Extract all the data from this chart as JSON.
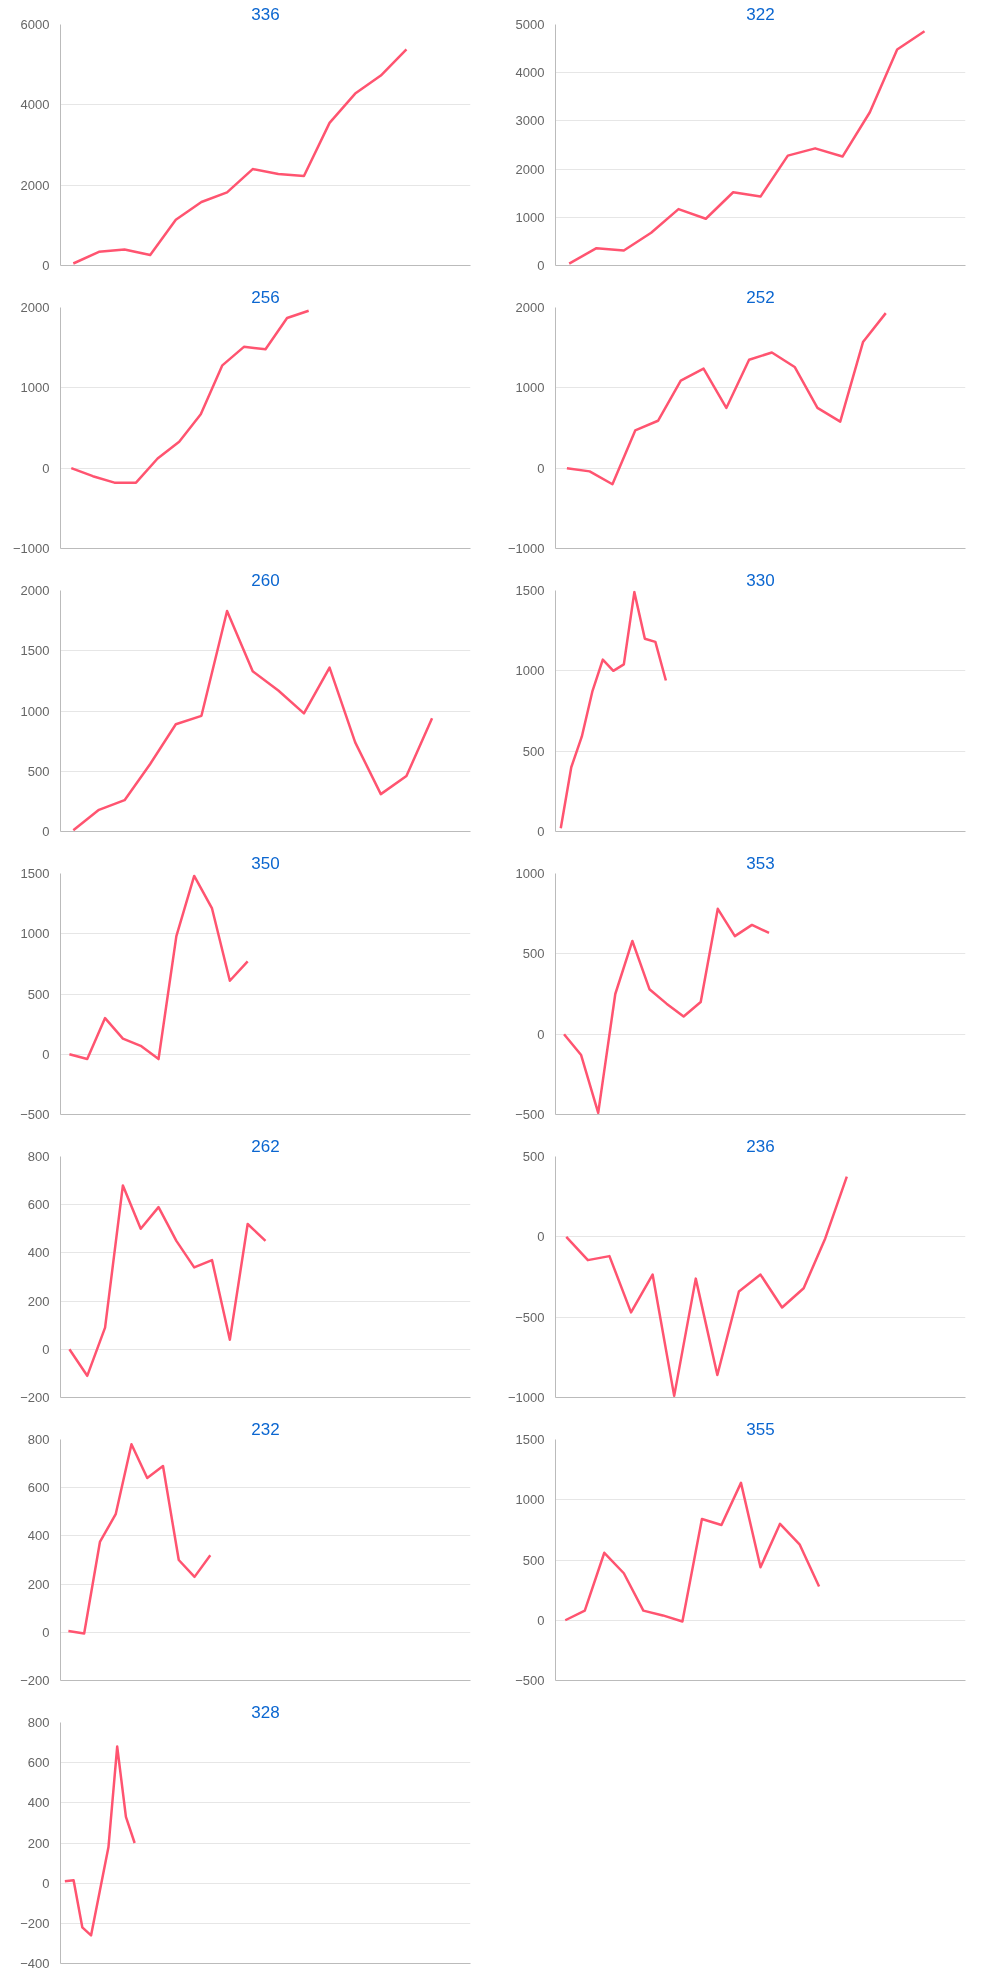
{
  "chart_data": [
    {
      "type": "line",
      "title": "336",
      "categories": [
        null,
        null,
        null,
        null,
        null,
        null,
        null,
        null,
        null,
        null,
        null,
        null,
        null,
        null,
        null,
        null
      ],
      "values": [
        50,
        340,
        400,
        260,
        1140,
        1580,
        1820,
        2400,
        2280,
        2230,
        3550,
        4280,
        4730,
        5380,
        null,
        null
      ],
      "color": "#ff5470",
      "ylim": [
        0,
        6000
      ],
      "yticks": [
        0,
        2000,
        4000,
        6000
      ],
      "grid": "y",
      "tick_labels": "y"
    },
    {
      "type": "line",
      "title": "322",
      "categories": [
        null,
        null,
        null,
        null,
        null,
        null,
        null,
        null,
        null,
        null,
        null,
        null,
        null,
        null,
        null
      ],
      "values": [
        40,
        360,
        310,
        680,
        1170,
        970,
        1520,
        1430,
        2280,
        2430,
        2260,
        3180,
        4480,
        4860,
        null
      ],
      "color": "#ff5470",
      "ylim": [
        0,
        5000
      ],
      "yticks": [
        0,
        1000,
        2000,
        3000,
        4000,
        5000
      ],
      "grid": "y",
      "tick_labels": "y"
    },
    {
      "type": "line",
      "title": "256",
      "categories": [
        null,
        null,
        null,
        null,
        null,
        null,
        null,
        null,
        null,
        null,
        null,
        null,
        null,
        null,
        null,
        null,
        null,
        null,
        null
      ],
      "values": [
        0,
        -100,
        -180,
        -180,
        120,
        330,
        670,
        1280,
        1510,
        1480,
        1870,
        1960,
        null,
        null,
        null,
        null,
        null,
        null,
        null
      ],
      "color": "#ff5470",
      "ylim": [
        -1000,
        2000
      ],
      "yticks": [
        -1000,
        0,
        1000,
        2000
      ],
      "grid": "y",
      "tick_labels": "y"
    },
    {
      "type": "line",
      "title": "252",
      "categories": [
        null,
        null,
        null,
        null,
        null,
        null,
        null,
        null,
        null,
        null,
        null,
        null,
        null,
        null,
        null,
        null,
        null,
        null
      ],
      "values": [
        0,
        -40,
        -200,
        470,
        590,
        1090,
        1240,
        750,
        1350,
        1440,
        1260,
        750,
        580,
        1570,
        1930,
        null,
        null,
        null
      ],
      "color": "#ff5470",
      "ylim": [
        -1000,
        2000
      ],
      "yticks": [
        -1000,
        0,
        1000,
        2000
      ],
      "grid": "y",
      "tick_labels": "y"
    },
    {
      "type": "line",
      "title": "260",
      "categories": [
        null,
        null,
        null,
        null,
        null,
        null,
        null,
        null,
        null,
        null,
        null,
        null,
        null,
        null,
        null,
        null
      ],
      "values": [
        10,
        180,
        260,
        560,
        890,
        960,
        1830,
        1330,
        1170,
        980,
        1360,
        740,
        310,
        460,
        940,
        null
      ],
      "color": "#ff5470",
      "ylim": [
        0,
        2000
      ],
      "yticks": [
        0,
        500,
        1000,
        1500,
        2000
      ],
      "grid": "y",
      "tick_labels": "y"
    },
    {
      "type": "line",
      "title": "330",
      "categories": [
        null,
        null,
        null,
        null,
        null,
        null,
        null,
        null,
        null,
        null,
        null,
        null,
        null,
        null,
        null,
        null,
        null,
        null,
        null,
        null,
        null,
        null,
        null,
        null,
        null,
        null,
        null,
        null,
        null,
        null,
        null,
        null,
        null,
        null,
        null,
        null,
        null,
        null,
        null
      ],
      "values": [
        20,
        400,
        590,
        870,
        1070,
        1000,
        1040,
        1490,
        1200,
        1180,
        940,
        null,
        null,
        null,
        null,
        null,
        null,
        null,
        null,
        null,
        null,
        null,
        null,
        null,
        null,
        null,
        null,
        null,
        null,
        null,
        null,
        null,
        null,
        null,
        null,
        null,
        null,
        null,
        null
      ],
      "color": "#ff5470",
      "ylim": [
        0,
        1500
      ],
      "yticks": [
        0,
        500,
        1000,
        1500
      ],
      "grid": "y",
      "tick_labels": "y"
    },
    {
      "type": "line",
      "title": "350",
      "categories": [
        null,
        null,
        null,
        null,
        null,
        null,
        null,
        null,
        null,
        null,
        null,
        null,
        null,
        null,
        null,
        null,
        null,
        null,
        null,
        null,
        null,
        null,
        null
      ],
      "values": [
        0,
        -40,
        300,
        130,
        70,
        -40,
        980,
        1480,
        1210,
        610,
        770,
        null,
        null,
        null,
        null,
        null,
        null,
        null,
        null,
        null,
        null,
        null,
        null
      ],
      "color": "#ff5470",
      "ylim": [
        -500,
        1500
      ],
      "yticks": [
        -500,
        0,
        500,
        1000,
        1500
      ],
      "grid": "y",
      "tick_labels": "y"
    },
    {
      "type": "line",
      "title": "353",
      "categories": [
        null,
        null,
        null,
        null,
        null,
        null,
        null,
        null,
        null,
        null,
        null,
        null,
        null,
        null,
        null,
        null,
        null,
        null,
        null,
        null,
        null,
        null,
        null,
        null
      ],
      "values": [
        0,
        -130,
        -490,
        250,
        580,
        280,
        190,
        110,
        200,
        780,
        610,
        680,
        630,
        null,
        null,
        null,
        null,
        null,
        null,
        null,
        null,
        null,
        null,
        null
      ],
      "color": "#ff5470",
      "ylim": [
        -500,
        1000
      ],
      "yticks": [
        -500,
        0,
        500,
        1000
      ],
      "grid": "y",
      "tick_labels": "y"
    },
    {
      "type": "line",
      "title": "262",
      "categories": [
        null,
        null,
        null,
        null,
        null,
        null,
        null,
        null,
        null,
        null,
        null,
        null,
        null,
        null,
        null,
        null,
        null,
        null,
        null,
        null,
        null,
        null,
        null
      ],
      "values": [
        0,
        -110,
        90,
        680,
        500,
        590,
        450,
        340,
        370,
        40,
        520,
        450,
        null,
        null,
        null,
        null,
        null,
        null,
        null,
        null,
        null,
        null,
        null
      ],
      "color": "#ff5470",
      "ylim": [
        -200,
        800
      ],
      "yticks": [
        -200,
        0,
        200,
        400,
        600,
        800
      ],
      "grid": "y",
      "tick_labels": "y"
    },
    {
      "type": "line",
      "title": "236",
      "categories": [
        null,
        null,
        null,
        null,
        null,
        null,
        null,
        null,
        null,
        null,
        null,
        null,
        null,
        null,
        null,
        null,
        null,
        null,
        null
      ],
      "values": [
        0,
        -145,
        -120,
        -470,
        -235,
        -990,
        -260,
        -860,
        -340,
        -235,
        -440,
        -320,
        -10,
        375,
        null,
        null,
        null,
        null,
        null
      ],
      "color": "#ff5470",
      "ylim": [
        -1000,
        500
      ],
      "yticks": [
        -1000,
        -500,
        0,
        500
      ],
      "grid": "y",
      "tick_labels": "y"
    },
    {
      "type": "line",
      "title": "232",
      "categories": [
        null,
        null,
        null,
        null,
        null,
        null,
        null,
        null,
        null,
        null,
        null,
        null,
        null,
        null,
        null,
        null,
        null,
        null,
        null,
        null,
        null,
        null,
        null,
        null,
        null,
        null
      ],
      "values": [
        5,
        -5,
        375,
        490,
        780,
        640,
        690,
        300,
        230,
        320,
        null,
        null,
        null,
        null,
        null,
        null,
        null,
        null,
        null,
        null,
        null,
        null,
        null,
        null,
        null,
        null
      ],
      "color": "#ff5470",
      "ylim": [
        -200,
        800
      ],
      "yticks": [
        -200,
        0,
        200,
        400,
        600,
        800
      ],
      "grid": "y",
      "tick_labels": "y"
    },
    {
      "type": "line",
      "title": "355",
      "categories": [
        null,
        null,
        null,
        null,
        null,
        null,
        null,
        null,
        null,
        null,
        null,
        null,
        null,
        null,
        null,
        null,
        null,
        null,
        null,
        null,
        null
      ],
      "values": [
        0,
        80,
        560,
        390,
        80,
        40,
        -10,
        840,
        790,
        1140,
        440,
        800,
        630,
        280,
        null,
        null,
        null,
        null,
        null,
        null,
        null
      ],
      "color": "#ff5470",
      "ylim": [
        -500,
        1500
      ],
      "yticks": [
        -500,
        0,
        500,
        1000,
        1500
      ],
      "grid": "y",
      "tick_labels": "y"
    },
    {
      "type": "line",
      "title": "328",
      "categories": [
        null,
        null,
        null,
        null,
        null,
        null,
        null,
        null,
        null,
        null,
        null,
        null,
        null,
        null,
        null,
        null,
        null,
        null,
        null,
        null,
        null,
        null,
        null,
        null,
        null,
        null,
        null,
        null,
        null,
        null,
        null,
        null,
        null,
        null,
        null,
        null,
        null,
        null,
        null,
        null,
        null,
        null,
        null,
        null,
        null,
        null,
        null
      ],
      "values": [
        10,
        15,
        -220,
        -260,
        -40,
        180,
        680,
        330,
        200,
        null,
        null,
        null,
        null,
        null,
        null,
        null,
        null,
        null,
        null,
        null,
        null,
        null,
        null,
        null,
        null,
        null,
        null,
        null,
        null,
        null,
        null,
        null,
        null,
        null,
        null,
        null,
        null,
        null,
        null,
        null,
        null,
        null,
        null,
        null,
        null,
        null,
        null
      ],
      "color": "#ff5470",
      "ylim": [
        -400,
        800
      ],
      "yticks": [
        -400,
        -200,
        0,
        200,
        400,
        600,
        800
      ],
      "grid": "y",
      "tick_labels": "y"
    }
  ]
}
